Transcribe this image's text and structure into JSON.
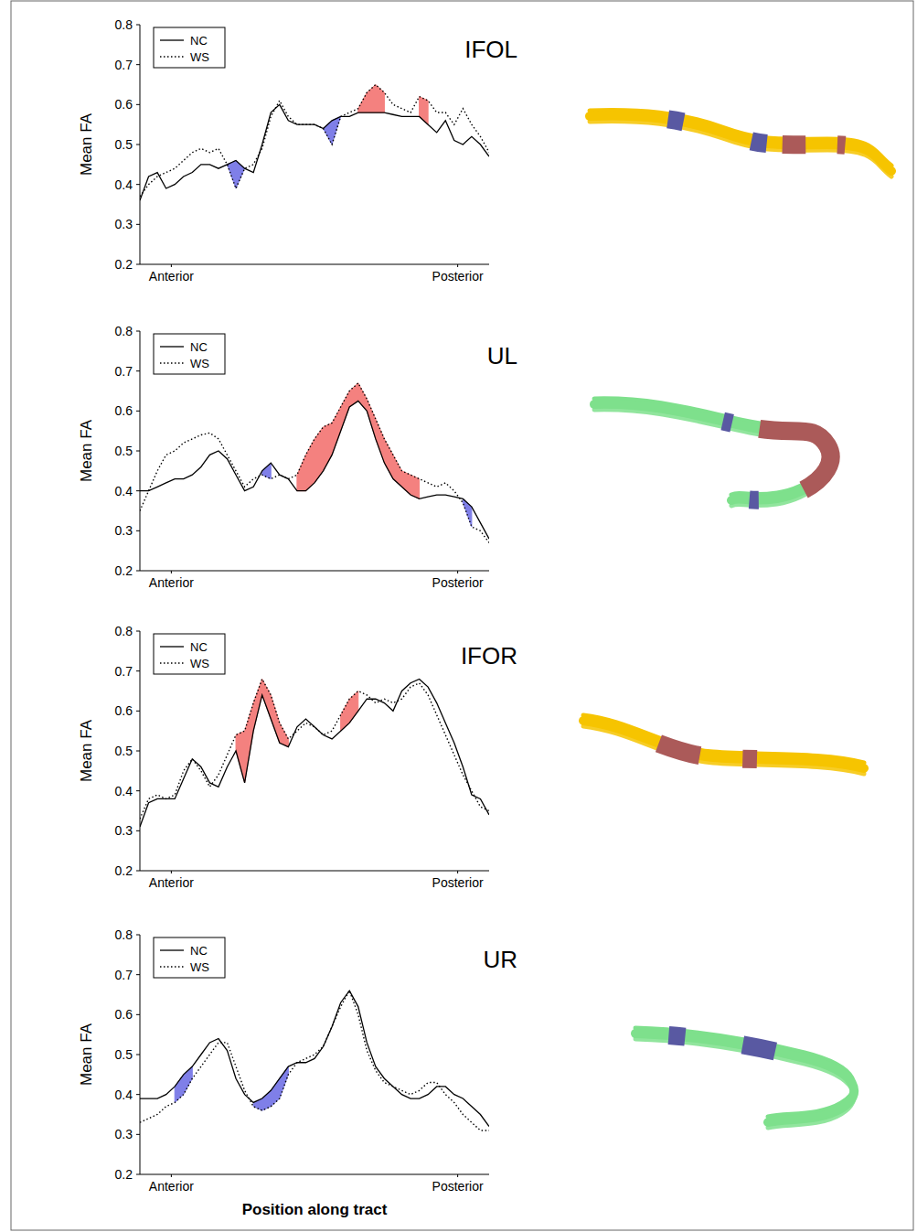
{
  "chart_data": [
    {
      "type": "line",
      "title": "IFOL",
      "y_label": "Mean FA",
      "legend": "upper left",
      "x": [
        0,
        2.5,
        5,
        7.5,
        10,
        12.5,
        15,
        17.5,
        20,
        22.5,
        25,
        27.5,
        30,
        32.5,
        35,
        37.5,
        40,
        42.5,
        45,
        47.5,
        50,
        52.5,
        55,
        57.5,
        60,
        62.5,
        65,
        67.5,
        70,
        72.5,
        75,
        77.5,
        80,
        82.5,
        85,
        87.5,
        90,
        92.5,
        95,
        97.5,
        100
      ],
      "xlim": [
        0,
        100
      ],
      "xticks": [
        {
          "value": 9,
          "label": "Anterior"
        },
        {
          "value": 91,
          "label": "Posterior"
        }
      ],
      "ylim": [
        0.2,
        0.8
      ],
      "yticks": [
        0.2,
        0.3,
        0.4,
        0.5,
        0.6,
        0.7,
        0.8
      ],
      "series": [
        {
          "name": "NC",
          "color": "#000000",
          "line_style": "solid",
          "values": [
            0.36,
            0.42,
            0.43,
            0.39,
            0.4,
            0.42,
            0.43,
            0.45,
            0.45,
            0.44,
            0.45,
            0.46,
            0.44,
            0.43,
            0.5,
            0.58,
            0.6,
            0.56,
            0.55,
            0.55,
            0.55,
            0.54,
            0.56,
            0.57,
            0.57,
            0.58,
            0.58,
            0.58,
            0.58,
            0.575,
            0.57,
            0.57,
            0.57,
            0.55,
            0.53,
            0.56,
            0.51,
            0.5,
            0.52,
            0.5,
            0.47
          ]
        },
        {
          "name": "WS",
          "color": "#000000",
          "line_style": "dotted",
          "values": [
            0.37,
            0.4,
            0.42,
            0.43,
            0.44,
            0.46,
            0.48,
            0.49,
            0.48,
            0.49,
            0.45,
            0.39,
            0.44,
            0.45,
            0.49,
            0.57,
            0.61,
            0.57,
            0.55,
            0.55,
            0.55,
            0.54,
            0.5,
            0.57,
            0.58,
            0.59,
            0.63,
            0.65,
            0.63,
            0.6,
            0.59,
            0.58,
            0.62,
            0.61,
            0.58,
            0.58,
            0.55,
            0.59,
            0.55,
            0.52,
            0.48
          ]
        }
      ],
      "highlights": [
        {
          "from": 25,
          "to": 30,
          "color": "#7f7fe8"
        },
        {
          "from": 52.5,
          "to": 57.5,
          "color": "#7f7fe8"
        },
        {
          "from": 62.5,
          "to": 70,
          "color": "#f4817f"
        },
        {
          "from": 80,
          "to": 82.5,
          "color": "#f4817f"
        }
      ]
    },
    {
      "type": "line",
      "title": "UL",
      "y_label": "Mean FA",
      "legend": "upper left",
      "x": [
        0,
        2.5,
        5,
        7.5,
        10,
        12.5,
        15,
        17.5,
        20,
        22.5,
        25,
        27.5,
        30,
        32.5,
        35,
        37.5,
        40,
        42.5,
        45,
        47.5,
        50,
        52.5,
        55,
        57.5,
        60,
        62.5,
        65,
        67.5,
        70,
        72.5,
        75,
        77.5,
        80,
        82.5,
        85,
        87.5,
        90,
        92.5,
        95,
        97.5,
        100
      ],
      "xlim": [
        0,
        100
      ],
      "xticks": [
        {
          "value": 9,
          "label": "Anterior"
        },
        {
          "value": 91,
          "label": "Posterior"
        }
      ],
      "ylim": [
        0.2,
        0.8
      ],
      "yticks": [
        0.2,
        0.3,
        0.4,
        0.5,
        0.6,
        0.7,
        0.8
      ],
      "series": [
        {
          "name": "NC",
          "color": "#000000",
          "line_style": "solid",
          "values": [
            0.4,
            0.4,
            0.41,
            0.42,
            0.43,
            0.43,
            0.44,
            0.46,
            0.49,
            0.5,
            0.48,
            0.44,
            0.4,
            0.41,
            0.45,
            0.47,
            0.44,
            0.43,
            0.4,
            0.4,
            0.42,
            0.45,
            0.49,
            0.55,
            0.61,
            0.625,
            0.6,
            0.53,
            0.47,
            0.43,
            0.41,
            0.39,
            0.38,
            0.385,
            0.39,
            0.39,
            0.385,
            0.38,
            0.36,
            0.32,
            0.28
          ]
        },
        {
          "name": "WS",
          "color": "#000000",
          "line_style": "dotted",
          "values": [
            0.35,
            0.4,
            0.45,
            0.49,
            0.5,
            0.52,
            0.53,
            0.54,
            0.545,
            0.53,
            0.49,
            0.45,
            0.41,
            0.43,
            0.44,
            0.43,
            0.44,
            0.43,
            0.44,
            0.49,
            0.53,
            0.56,
            0.57,
            0.61,
            0.65,
            0.67,
            0.63,
            0.58,
            0.53,
            0.49,
            0.45,
            0.44,
            0.43,
            0.42,
            0.41,
            0.42,
            0.4,
            0.37,
            0.31,
            0.3,
            0.27
          ]
        }
      ],
      "highlights": [
        {
          "from": 35,
          "to": 37.5,
          "color": "#7f7fe8"
        },
        {
          "from": 45,
          "to": 80,
          "color": "#f4817f"
        },
        {
          "from": 92.5,
          "to": 95,
          "color": "#7f7fe8"
        }
      ]
    },
    {
      "type": "line",
      "title": "IFOR",
      "y_label": "Mean FA",
      "legend": "upper left",
      "x": [
        0,
        2.5,
        5,
        7.5,
        10,
        12.5,
        15,
        17.5,
        20,
        22.5,
        25,
        27.5,
        30,
        32.5,
        35,
        37.5,
        40,
        42.5,
        45,
        47.5,
        50,
        52.5,
        55,
        57.5,
        60,
        62.5,
        65,
        67.5,
        70,
        72.5,
        75,
        77.5,
        80,
        82.5,
        85,
        87.5,
        90,
        92.5,
        95,
        97.5,
        100
      ],
      "xlim": [
        0,
        100
      ],
      "xticks": [
        {
          "value": 9,
          "label": "Anterior"
        },
        {
          "value": 91,
          "label": "Posterior"
        }
      ],
      "ylim": [
        0.2,
        0.8
      ],
      "yticks": [
        0.2,
        0.3,
        0.4,
        0.5,
        0.6,
        0.7,
        0.8
      ],
      "series": [
        {
          "name": "NC",
          "color": "#000000",
          "line_style": "solid",
          "values": [
            0.31,
            0.37,
            0.38,
            0.38,
            0.38,
            0.43,
            0.48,
            0.46,
            0.42,
            0.41,
            0.46,
            0.5,
            0.42,
            0.55,
            0.64,
            0.58,
            0.52,
            0.51,
            0.56,
            0.58,
            0.56,
            0.54,
            0.53,
            0.55,
            0.57,
            0.6,
            0.63,
            0.63,
            0.62,
            0.6,
            0.65,
            0.67,
            0.68,
            0.66,
            0.62,
            0.57,
            0.52,
            0.46,
            0.39,
            0.38,
            0.34
          ]
        },
        {
          "name": "WS",
          "color": "#000000",
          "line_style": "dotted",
          "values": [
            0.33,
            0.38,
            0.39,
            0.38,
            0.39,
            0.45,
            0.48,
            0.45,
            0.41,
            0.44,
            0.49,
            0.54,
            0.55,
            0.62,
            0.68,
            0.64,
            0.57,
            0.53,
            0.55,
            0.57,
            0.56,
            0.54,
            0.55,
            0.59,
            0.63,
            0.65,
            0.64,
            0.62,
            0.63,
            0.62,
            0.63,
            0.66,
            0.67,
            0.64,
            0.59,
            0.54,
            0.49,
            0.44,
            0.4,
            0.36,
            0.35
          ]
        }
      ],
      "highlights": [
        {
          "from": 27.5,
          "to": 42.5,
          "color": "#f4817f"
        },
        {
          "from": 57.5,
          "to": 62.5,
          "color": "#f4817f"
        }
      ]
    },
    {
      "type": "line",
      "title": "UR",
      "y_label": "Mean FA",
      "x_label": "Position along tract",
      "legend": "upper left",
      "x": [
        0,
        2.5,
        5,
        7.5,
        10,
        12.5,
        15,
        17.5,
        20,
        22.5,
        25,
        27.5,
        30,
        32.5,
        35,
        37.5,
        40,
        42.5,
        45,
        47.5,
        50,
        52.5,
        55,
        57.5,
        60,
        62.5,
        65,
        67.5,
        70,
        72.5,
        75,
        77.5,
        80,
        82.5,
        85,
        87.5,
        90,
        92.5,
        95,
        97.5,
        100
      ],
      "xlim": [
        0,
        100
      ],
      "xticks": [
        {
          "value": 9,
          "label": "Anterior"
        },
        {
          "value": 91,
          "label": "Posterior"
        }
      ],
      "ylim": [
        0.2,
        0.8
      ],
      "yticks": [
        0.2,
        0.3,
        0.4,
        0.5,
        0.6,
        0.7,
        0.8
      ],
      "series": [
        {
          "name": "NC",
          "color": "#000000",
          "line_style": "solid",
          "values": [
            0.39,
            0.39,
            0.39,
            0.4,
            0.42,
            0.45,
            0.47,
            0.5,
            0.53,
            0.54,
            0.51,
            0.44,
            0.4,
            0.38,
            0.39,
            0.41,
            0.44,
            0.47,
            0.48,
            0.48,
            0.49,
            0.52,
            0.57,
            0.63,
            0.66,
            0.62,
            0.53,
            0.47,
            0.44,
            0.42,
            0.4,
            0.39,
            0.39,
            0.4,
            0.42,
            0.42,
            0.4,
            0.39,
            0.37,
            0.35,
            0.32
          ]
        },
        {
          "name": "WS",
          "color": "#000000",
          "line_style": "dotted",
          "values": [
            0.33,
            0.34,
            0.35,
            0.37,
            0.38,
            0.4,
            0.44,
            0.47,
            0.5,
            0.53,
            0.53,
            0.47,
            0.41,
            0.37,
            0.36,
            0.37,
            0.39,
            0.45,
            0.48,
            0.49,
            0.5,
            0.52,
            0.57,
            0.62,
            0.66,
            0.6,
            0.51,
            0.46,
            0.43,
            0.42,
            0.41,
            0.4,
            0.41,
            0.43,
            0.43,
            0.4,
            0.38,
            0.35,
            0.33,
            0.31,
            0.31
          ]
        }
      ],
      "highlights": [
        {
          "from": 10,
          "to": 15,
          "color": "#7f7fe8"
        },
        {
          "from": 32.5,
          "to": 42.5,
          "color": "#7f7fe8"
        }
      ]
    }
  ]
}
